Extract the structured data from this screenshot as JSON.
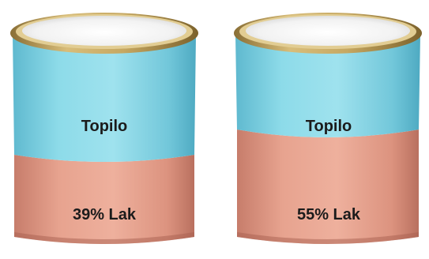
{
  "cans": [
    {
      "top_label": "Topilo",
      "bottom_label": "39% Lak",
      "lak_fraction": 0.39
    },
    {
      "top_label": "Topilo",
      "bottom_label": "55% Lak",
      "lak_fraction": 0.55
    }
  ],
  "colors": {
    "topilo": "#7ccfe0",
    "lak": "#e39a86",
    "rim_gold": "#bfa15a",
    "lid": "#f4f4f4"
  }
}
